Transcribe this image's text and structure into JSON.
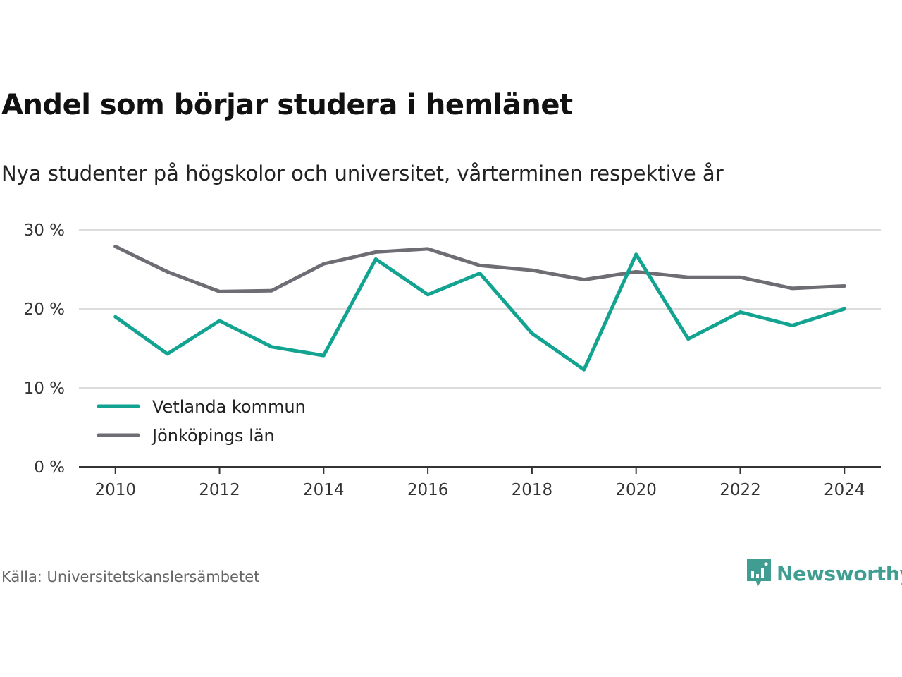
{
  "title": "Andel som börjar studera i hemlänet",
  "subtitle": "Nya studenter på högskolor och universitet, vårterminen respektive år",
  "source": "Källa: Universitetskanslersämbetet",
  "logo": {
    "text": "Newsworthy",
    "icon": "newsworthy-logo-icon",
    "color": "#3f9e91"
  },
  "chart_data": {
    "type": "line",
    "x": [
      2010,
      2011,
      2012,
      2013,
      2014,
      2015,
      2016,
      2017,
      2018,
      2019,
      2020,
      2021,
      2022,
      2023,
      2024
    ],
    "xticks": [
      "2010",
      "2012",
      "2014",
      "2016",
      "2018",
      "2020",
      "2022",
      "2024"
    ],
    "xtick_values": [
      2010,
      2012,
      2014,
      2016,
      2018,
      2020,
      2022,
      2024
    ],
    "yticks": [
      "0 %",
      "10 %",
      "20 %",
      "30 %"
    ],
    "ytick_values": [
      0,
      10,
      20,
      30
    ],
    "ylim": [
      0,
      30
    ],
    "xlim": [
      2009.3,
      2024.7
    ],
    "grid": true,
    "legend_position": "bottom-left",
    "series": [
      {
        "name": "Vetlanda kommun",
        "color": "#12a391",
        "values": [
          19.0,
          14.3,
          18.5,
          15.2,
          14.1,
          26.3,
          21.8,
          24.5,
          16.9,
          12.3,
          26.9,
          16.2,
          19.6,
          17.9,
          20.0
        ]
      },
      {
        "name": "Jönköpings län",
        "color": "#6e6d74",
        "values": [
          27.9,
          24.7,
          22.2,
          22.3,
          25.7,
          27.2,
          27.6,
          25.5,
          24.9,
          23.7,
          24.7,
          24.0,
          24.0,
          22.6,
          22.9
        ]
      }
    ]
  }
}
